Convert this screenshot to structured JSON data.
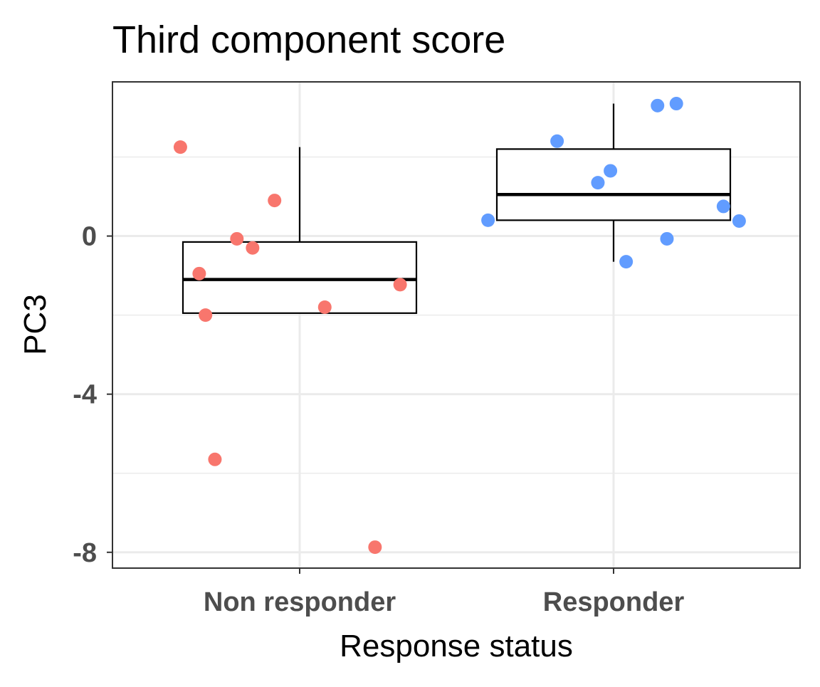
{
  "chart_data": {
    "type": "box",
    "title": "Third component score",
    "xlabel": "Response status",
    "ylabel": "PC3",
    "categories": [
      "Non responder",
      "Responder"
    ],
    "ylim": [
      -8.4,
      3.9
    ],
    "yticks": [
      0,
      -4,
      -8
    ],
    "ytick_labels": [
      "0",
      "-4",
      "-8"
    ],
    "grid": true,
    "legend": "none",
    "colors": {
      "Non responder": "#f8766d",
      "Responder": "#619cff"
    },
    "boxes": [
      {
        "category": "Non responder",
        "q1": -1.95,
        "median": -1.1,
        "q3": -0.15,
        "whisker_low": -1.95,
        "whisker_high": 2.25
      },
      {
        "category": "Responder",
        "q1": 0.4,
        "median": 1.05,
        "q3": 2.2,
        "whisker_low": -0.65,
        "whisker_high": 3.35
      }
    ],
    "points": [
      {
        "category": "Non responder",
        "jitter": -0.38,
        "y": 2.25
      },
      {
        "category": "Non responder",
        "jitter": -0.08,
        "y": 0.9
      },
      {
        "category": "Non responder",
        "jitter": -0.2,
        "y": -0.07
      },
      {
        "category": "Non responder",
        "jitter": -0.15,
        "y": -0.3
      },
      {
        "category": "Non responder",
        "jitter": -0.32,
        "y": -0.95
      },
      {
        "category": "Non responder",
        "jitter": 0.32,
        "y": -1.23
      },
      {
        "category": "Non responder",
        "jitter": 0.08,
        "y": -1.8
      },
      {
        "category": "Non responder",
        "jitter": -0.3,
        "y": -2.0
      },
      {
        "category": "Non responder",
        "jitter": -0.27,
        "y": -5.65
      },
      {
        "category": "Non responder",
        "jitter": 0.24,
        "y": -7.87
      },
      {
        "category": "Responder",
        "jitter": 0.2,
        "y": 3.35
      },
      {
        "category": "Responder",
        "jitter": 0.14,
        "y": 3.3
      },
      {
        "category": "Responder",
        "jitter": -0.18,
        "y": 2.4
      },
      {
        "category": "Responder",
        "jitter": -0.01,
        "y": 1.65
      },
      {
        "category": "Responder",
        "jitter": -0.05,
        "y": 1.35
      },
      {
        "category": "Responder",
        "jitter": 0.35,
        "y": 0.75
      },
      {
        "category": "Responder",
        "jitter": -0.4,
        "y": 0.4
      },
      {
        "category": "Responder",
        "jitter": 0.4,
        "y": 0.38
      },
      {
        "category": "Responder",
        "jitter": 0.17,
        "y": -0.07
      },
      {
        "category": "Responder",
        "jitter": 0.04,
        "y": -0.65
      }
    ]
  }
}
